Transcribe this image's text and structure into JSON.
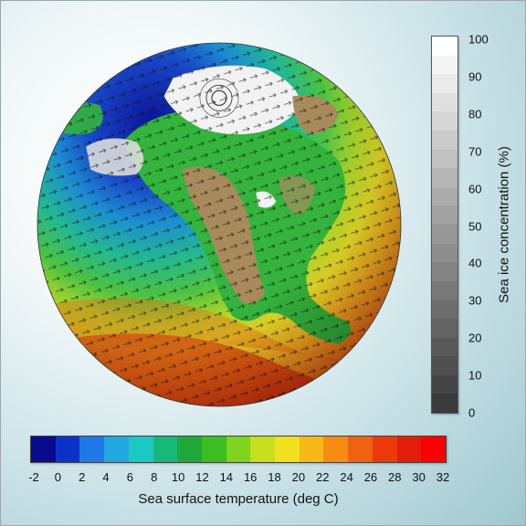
{
  "ice_colorbar": {
    "label": "Sea ice concentration (%)",
    "ticks": [
      "100",
      "90",
      "80",
      "70",
      "60",
      "50",
      "40",
      "30",
      "20",
      "10",
      "0"
    ],
    "color_top": "#ffffff",
    "color_bottom": "#3a3a3a"
  },
  "sst_colorbar": {
    "label": "Sea surface temperature (deg C)",
    "ticks": [
      "-2",
      "0",
      "2",
      "4",
      "6",
      "8",
      "10",
      "12",
      "14",
      "16",
      "18",
      "20",
      "22",
      "24",
      "26",
      "28",
      "30",
      "32"
    ],
    "colors": [
      "#0a0a8c",
      "#0b32c8",
      "#1e78e6",
      "#21a8e0",
      "#1ac9c2",
      "#17b87a",
      "#1ea83c",
      "#3cbd22",
      "#7ed41e",
      "#c6e01e",
      "#f0e01e",
      "#f8b818",
      "#f68c14",
      "#f0620f",
      "#ea3a0c",
      "#e41c0a",
      "#ff0000"
    ]
  },
  "globe": {
    "ocean_colors": [
      "#c40000",
      "#e83a0c",
      "#f4761a",
      "#f8b420",
      "#e8de28",
      "#a6d42a",
      "#4cc242",
      "#22b892",
      "#1c8ed2",
      "#1848c8",
      "#0c1496"
    ],
    "land_green": "#34b43c",
    "land_brown": "#a98a5c",
    "ice_white": "#f2f2f2"
  }
}
